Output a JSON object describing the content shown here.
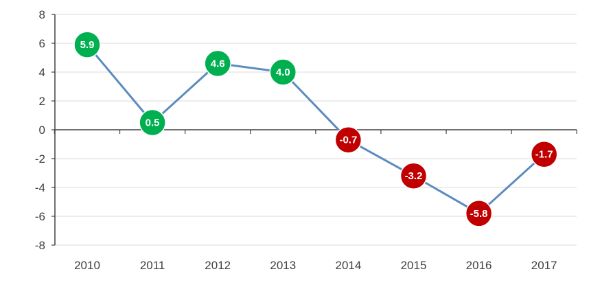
{
  "chart_data": {
    "type": "line",
    "title": "",
    "xlabel": "",
    "ylabel": "",
    "categories": [
      "2010",
      "2011",
      "2012",
      "2013",
      "2014",
      "2015",
      "2016",
      "2017"
    ],
    "series": [
      {
        "values": [
          5.9,
          0.5,
          4.6,
          4.0,
          -0.7,
          -3.2,
          -5.8,
          -1.7
        ],
        "labels": [
          "5.9",
          "0.5",
          "4.6",
          "4.0",
          "-0.7",
          "-3.2",
          "-5.8",
          "-1.7"
        ]
      }
    ],
    "ylim": [
      -8,
      8
    ],
    "yticks": [
      8,
      6,
      4,
      2,
      0,
      -2,
      -4,
      -6,
      -8
    ],
    "ytick_labels": [
      "8",
      "6",
      "4",
      "2",
      "0",
      "-2",
      "-4",
      "-6",
      "-8"
    ],
    "grid": true,
    "legend": "none",
    "colors": {
      "line": "#5b8bbf",
      "positive_marker": "#00b050",
      "negative_marker": "#c00000",
      "grid": "#d9d9d9",
      "axis": "#404040"
    }
  }
}
